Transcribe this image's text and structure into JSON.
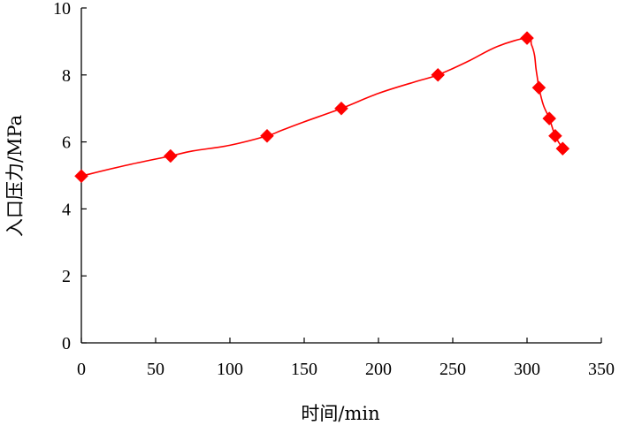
{
  "chart_data": {
    "type": "line",
    "xlabel": "时间/min",
    "ylabel": "入口压力/MPa",
    "xlim": [
      0,
      350
    ],
    "ylim": [
      0,
      10
    ],
    "xticks": [
      "0",
      "50",
      "100",
      "150",
      "200",
      "250",
      "300",
      "350"
    ],
    "yticks": [
      "0",
      "2",
      "4",
      "6",
      "8",
      "10"
    ],
    "grid": false,
    "legend": "none",
    "series": [
      {
        "color": "#ff0000",
        "marker": "diamond",
        "x": [
          0,
          60,
          125,
          175,
          240,
          300,
          308,
          315,
          319,
          324
        ],
        "y": [
          4.98,
          5.58,
          6.18,
          7.0,
          8.0,
          9.1,
          7.62,
          6.7,
          6.18,
          5.8
        ]
      }
    ],
    "curve": {
      "x": [
        0,
        30,
        60,
        75,
        100,
        125,
        135,
        150,
        175,
        200,
        225,
        240,
        260,
        280,
        300,
        303,
        305,
        306,
        307,
        308,
        311,
        315,
        319,
        324
      ],
      "y": [
        4.98,
        5.3,
        5.58,
        5.73,
        5.9,
        6.18,
        6.35,
        6.6,
        7.0,
        7.45,
        7.8,
        8.0,
        8.4,
        8.85,
        9.1,
        8.9,
        8.6,
        8.2,
        7.9,
        7.62,
        7.1,
        6.7,
        6.18,
        5.8
      ]
    }
  }
}
